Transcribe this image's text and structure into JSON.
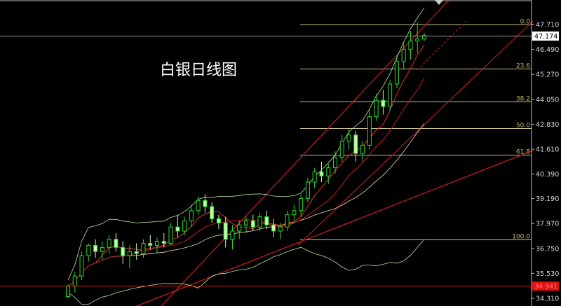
{
  "title": "白银日线图",
  "chart_data": {
    "type": "candlestick",
    "title": "白银日线图",
    "y_ticks": [
      "47.710",
      "46.490",
      "45.270",
      "44.050",
      "42.830",
      "41.610",
      "40.390",
      "39.190",
      "37.970",
      "36.750",
      "35.530",
      "34.310"
    ],
    "ylim": [
      34.0,
      48.3
    ],
    "current_price": "47.174",
    "marked_price": "34.941",
    "fibonacci": [
      {
        "label": "0.0",
        "price": 47.71
      },
      {
        "label": "23.6",
        "price": 45.55
      },
      {
        "label": "38.2",
        "price": 43.95
      },
      {
        "label": "50.0",
        "price": 42.65
      },
      {
        "label": "61.8",
        "price": 41.35
      },
      {
        "label": "100.0",
        "price": 37.2
      }
    ],
    "ohlc": [
      [
        34.4,
        35.0,
        34.3,
        34.9
      ],
      [
        34.9,
        35.6,
        34.6,
        35.4
      ],
      [
        35.4,
        36.6,
        35.2,
        36.4
      ],
      [
        36.4,
        37.0,
        36.1,
        36.9
      ],
      [
        36.9,
        37.2,
        36.3,
        36.6
      ],
      [
        36.6,
        37.1,
        36.2,
        36.8
      ],
      [
        36.8,
        37.4,
        36.5,
        37.2
      ],
      [
        37.2,
        37.5,
        36.6,
        36.8
      ],
      [
        36.8,
        37.1,
        36.0,
        36.4
      ],
      [
        36.4,
        36.9,
        35.8,
        36.6
      ],
      [
        36.6,
        37.0,
        36.2,
        36.5
      ],
      [
        36.5,
        37.2,
        36.3,
        37.0
      ],
      [
        37.0,
        37.4,
        36.7,
        36.9
      ],
      [
        36.9,
        37.3,
        36.5,
        37.1
      ],
      [
        37.1,
        37.5,
        36.8,
        37.0
      ],
      [
        37.0,
        38.0,
        36.9,
        37.8
      ],
      [
        37.8,
        38.4,
        37.3,
        37.6
      ],
      [
        37.6,
        38.3,
        37.4,
        38.1
      ],
      [
        38.1,
        38.9,
        37.8,
        38.6
      ],
      [
        38.6,
        39.3,
        38.4,
        39.1
      ],
      [
        39.1,
        39.4,
        38.5,
        38.8
      ],
      [
        38.8,
        39.0,
        38.0,
        38.2
      ],
      [
        38.2,
        38.4,
        37.7,
        38.0
      ],
      [
        38.0,
        38.3,
        36.8,
        37.2
      ],
      [
        37.2,
        37.9,
        36.7,
        37.6
      ],
      [
        37.6,
        38.1,
        37.2,
        37.9
      ],
      [
        37.9,
        38.3,
        37.5,
        38.1
      ],
      [
        38.1,
        38.4,
        37.6,
        37.8
      ],
      [
        37.8,
        38.5,
        37.6,
        38.3
      ],
      [
        38.3,
        38.6,
        37.7,
        37.9
      ],
      [
        37.9,
        38.2,
        37.3,
        37.6
      ],
      [
        37.6,
        38.0,
        37.2,
        37.8
      ],
      [
        37.8,
        38.6,
        37.6,
        38.4
      ],
      [
        38.4,
        38.9,
        38.1,
        38.6
      ],
      [
        38.6,
        39.4,
        38.3,
        39.2
      ],
      [
        39.2,
        40.2,
        39.0,
        40.0
      ],
      [
        40.0,
        40.7,
        39.7,
        40.5
      ],
      [
        40.5,
        41.0,
        40.0,
        40.3
      ],
      [
        40.3,
        40.9,
        39.9,
        40.7
      ],
      [
        40.7,
        41.5,
        40.4,
        41.2
      ],
      [
        41.2,
        42.3,
        41.0,
        42.0
      ],
      [
        42.0,
        42.6,
        41.6,
        42.3
      ],
      [
        42.3,
        42.5,
        41.0,
        41.4
      ],
      [
        41.4,
        42.0,
        41.0,
        41.8
      ],
      [
        41.8,
        43.5,
        41.6,
        43.2
      ],
      [
        43.2,
        44.3,
        43.0,
        44.0
      ],
      [
        44.0,
        44.5,
        43.3,
        43.7
      ],
      [
        43.7,
        45.0,
        43.5,
        44.8
      ],
      [
        44.8,
        46.2,
        44.6,
        45.9
      ],
      [
        45.9,
        46.9,
        45.5,
        46.5
      ],
      [
        46.5,
        47.4,
        46.0,
        46.9
      ],
      [
        46.9,
        47.8,
        46.3,
        47.0
      ],
      [
        47.0,
        47.3,
        46.9,
        47.17
      ]
    ],
    "colors": {
      "up": "#22e022",
      "down": "#c8ffb0",
      "fib": "#c8c08a",
      "trend": "#cc1f1f",
      "axis": "#d8d8d8",
      "price_line": "#9a9a9a",
      "marker": "#e01010"
    }
  }
}
